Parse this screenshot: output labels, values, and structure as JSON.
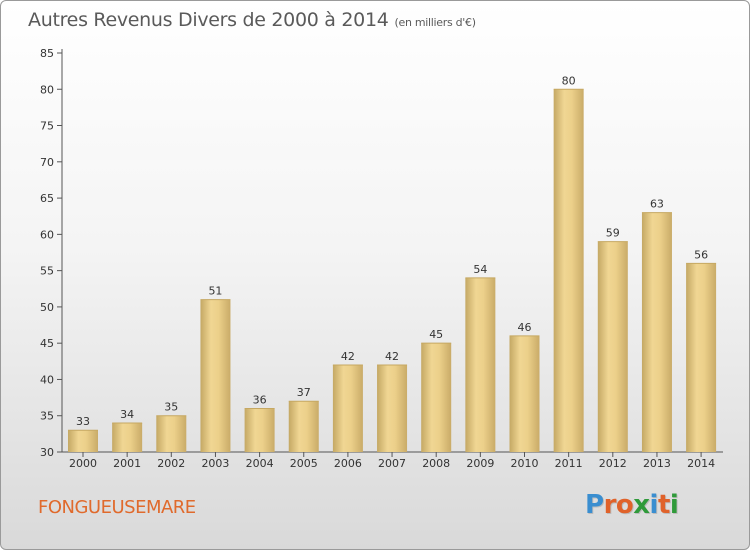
{
  "chart_data": {
    "type": "bar",
    "title": "Autres Revenus Divers de 2000 à 2014",
    "subtitle": "(en milliers d'€)",
    "categories": [
      "2000",
      "2001",
      "2002",
      "2003",
      "2004",
      "2005",
      "2006",
      "2007",
      "2008",
      "2009",
      "2010",
      "2011",
      "2012",
      "2013",
      "2014"
    ],
    "values": [
      33,
      34,
      35,
      51,
      36,
      37,
      42,
      42,
      45,
      54,
      46,
      80,
      59,
      63,
      56
    ],
    "ylim": [
      30,
      85
    ],
    "yticks": [
      30,
      35,
      40,
      45,
      50,
      55,
      60,
      65,
      70,
      75,
      80,
      85
    ],
    "xlabel": "",
    "ylabel": "",
    "grid": false,
    "bar_color": "#e8c77f"
  },
  "footer": {
    "town": "FONGUEUSEMARE",
    "logo_letters": [
      "P",
      "r",
      "o",
      "x",
      "i",
      "t",
      "i"
    ],
    "logo_colors": [
      "#3a8ed0",
      "#e0622a",
      "#e0622a",
      "#2f9a3a",
      "#3a8ed0",
      "#e0622a",
      "#2f9a3a"
    ]
  }
}
